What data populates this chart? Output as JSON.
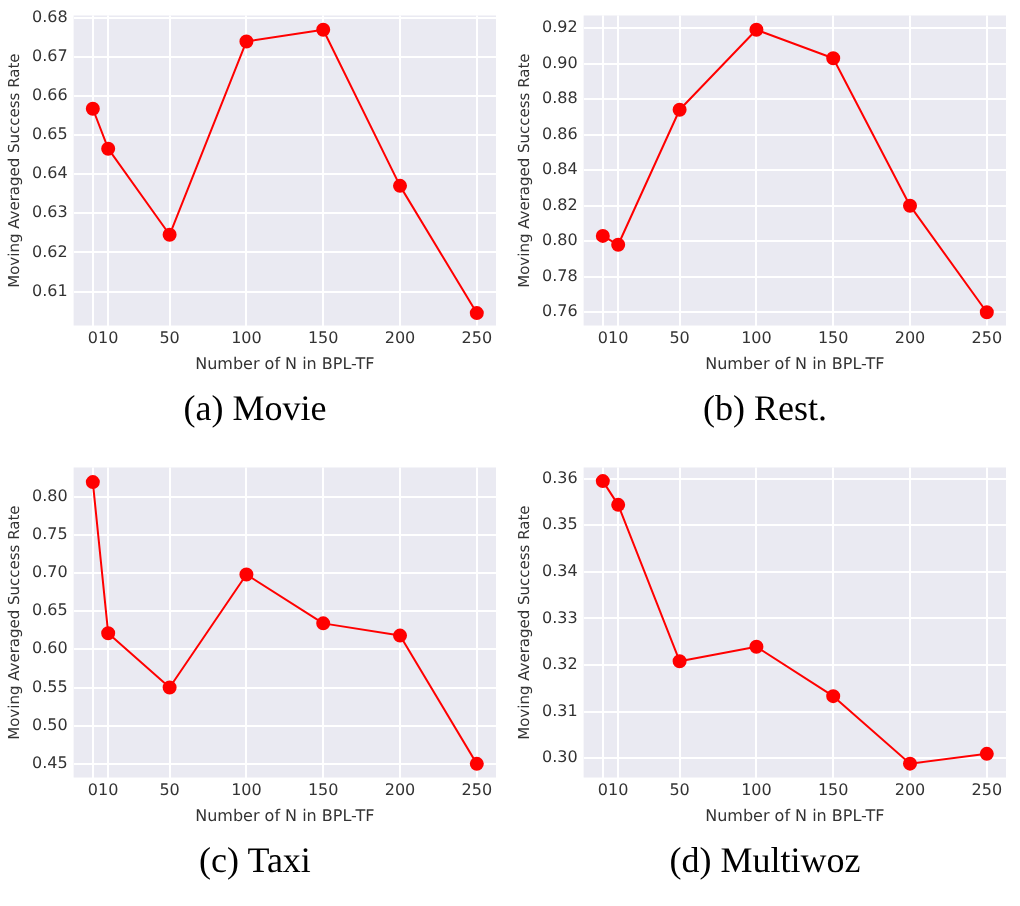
{
  "chart_data": [
    {
      "type": "line",
      "title": "(a) Movie",
      "xlabel": "Number of N in BPL-TF",
      "ylabel": "Moving Averaged Success Rate",
      "x": [
        0,
        10,
        50,
        100,
        150,
        200,
        250
      ],
      "series": [
        {
          "color": "#ff0000",
          "values": [
            0.6567,
            0.6465,
            0.6245,
            0.6739,
            0.6769,
            0.637,
            0.6045
          ]
        }
      ],
      "xlim": [
        -12.5,
        262.5
      ],
      "ylim": [
        0.6013,
        0.6805
      ],
      "xticks": [
        0,
        10,
        50,
        100,
        150,
        200,
        250
      ],
      "yticks": [
        0.61,
        0.62,
        0.63,
        0.64,
        0.65,
        0.66,
        0.67,
        0.68
      ],
      "grid": true,
      "marker": "circle"
    },
    {
      "type": "line",
      "title": "(b) Rest.",
      "xlabel": "Number of N in BPL-TF",
      "ylabel": "Moving Averaged Success Rate",
      "x": [
        0,
        10,
        50,
        100,
        150,
        200,
        250
      ],
      "series": [
        {
          "color": "#ff0000",
          "values": [
            0.803,
            0.798,
            0.874,
            0.919,
            0.903,
            0.82,
            0.76
          ]
        }
      ],
      "xlim": [
        -12.5,
        262.5
      ],
      "ylim": [
        0.7525,
        0.927
      ],
      "xticks": [
        0,
        10,
        50,
        100,
        150,
        200,
        250
      ],
      "yticks": [
        0.76,
        0.78,
        {
          "value": 0.8,
          "label": "0.80"
        },
        0.82,
        0.84,
        0.86,
        0.88,
        {
          "value": 0.9,
          "label": "0.90"
        },
        0.92
      ],
      "grid": true,
      "marker": "circle"
    },
    {
      "type": "line",
      "title": "(c) Taxi",
      "xlabel": "Number of N in BPL-TF",
      "ylabel": "Moving Averaged Success Rate",
      "x": [
        0,
        10,
        50,
        100,
        150,
        200,
        250
      ],
      "series": [
        {
          "color": "#ff0000",
          "values": [
            0.819,
            0.621,
            0.55,
            0.698,
            0.634,
            0.618,
            0.45
          ]
        }
      ],
      "xlim": [
        -12.5,
        262.5
      ],
      "ylim": [
        0.432,
        0.838
      ],
      "xticks": [
        0,
        10,
        50,
        100,
        150,
        200,
        250
      ],
      "yticks": [
        0.45,
        {
          "value": 0.5,
          "label": "0.50"
        },
        0.55,
        {
          "value": 0.6,
          "label": "0.60"
        },
        0.65,
        {
          "value": 0.7,
          "label": "0.70"
        },
        0.75,
        {
          "value": 0.8,
          "label": "0.80"
        }
      ],
      "grid": true,
      "marker": "circle"
    },
    {
      "type": "line",
      "title": "(d) Multiwoz",
      "xlabel": "Number of N in BPL-TF",
      "ylabel": "Moving Averaged Success Rate",
      "x": [
        0,
        10,
        50,
        100,
        150,
        200,
        250
      ],
      "series": [
        {
          "color": "#ff0000",
          "values": [
            0.3595,
            0.3544,
            0.3208,
            0.3239,
            0.3133,
            0.2988,
            0.3009
          ]
        }
      ],
      "xlim": [
        -12.5,
        262.5
      ],
      "ylim": [
        0.2958,
        0.3624
      ],
      "xticks": [
        0,
        10,
        50,
        100,
        150,
        200,
        250
      ],
      "yticks": [
        {
          "value": 0.3,
          "label": "0.30"
        },
        0.31,
        0.32,
        0.33,
        0.34,
        0.35,
        0.36
      ],
      "grid": true,
      "marker": "circle"
    }
  ]
}
